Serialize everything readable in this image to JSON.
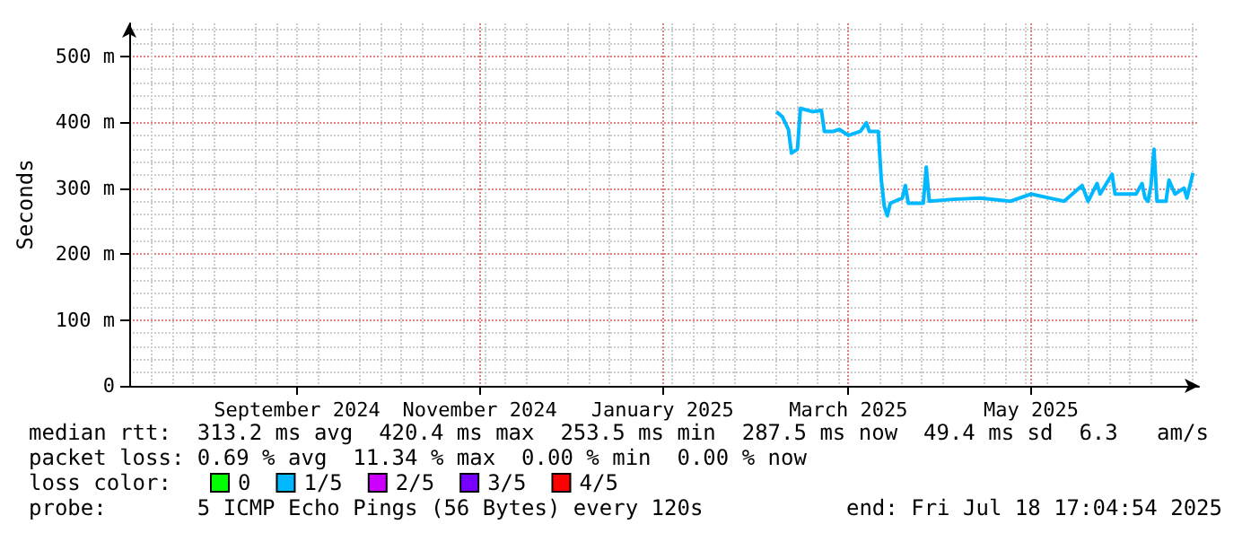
{
  "chart_data": {
    "type": "line",
    "ylabel": "Seconds",
    "xlim": [
      "2024-07-26",
      "2025-07-18"
    ],
    "xticks": [
      {
        "value": "2024-09-20",
        "label": "September 2024"
      },
      {
        "value": "2024-11-20",
        "label": "November 2024"
      },
      {
        "value": "2025-01-20",
        "label": "January 2025"
      },
      {
        "value": "2025-03-23",
        "label": "March 2025"
      },
      {
        "value": "2025-05-23",
        "label": "May 2025"
      }
    ],
    "ylim": [
      0,
      550
    ],
    "yticks": [
      0,
      {
        "value": 100,
        "label": "100 m"
      },
      {
        "value": 200,
        "label": "200 m"
      },
      {
        "value": 300,
        "label": "300 m"
      },
      {
        "value": 400,
        "label": "400 m"
      },
      {
        "value": 500,
        "label": "500 m"
      }
    ],
    "grid": true,
    "legend": "bottom",
    "marker": "none",
    "x": [
      "2025-02-27",
      "2025-03-01",
      "2025-03-03",
      "2025-03-04",
      "2025-03-06",
      "2025-03-07",
      "2025-03-11",
      "2025-03-14",
      "2025-03-15",
      "2025-03-18",
      "2025-03-20",
      "2025-03-23",
      "2025-03-27",
      "2025-03-29",
      "2025-03-30",
      "2025-04-02",
      "2025-04-03",
      "2025-04-04",
      "2025-04-05",
      "2025-04-06",
      "2025-04-10",
      "2025-04-11",
      "2025-04-12",
      "2025-04-17",
      "2025-04-18",
      "2025-04-19",
      "2025-04-27",
      "2025-05-06",
      "2025-05-16",
      "2025-05-23",
      "2025-05-29",
      "2025-06-03",
      "2025-06-09",
      "2025-06-11",
      "2025-06-14",
      "2025-06-15",
      "2025-06-19",
      "2025-06-20",
      "2025-06-27",
      "2025-06-29",
      "2025-06-30",
      "2025-07-01",
      "2025-07-02",
      "2025-07-03",
      "2025-07-04",
      "2025-07-07",
      "2025-07-08",
      "2025-07-10",
      "2025-07-13",
      "2025-07-14",
      "2025-07-16"
    ],
    "series": [
      {
        "name": "0",
        "color": "#00ff00",
        "values": [
          null,
          null,
          null,
          null,
          null,
          null,
          null,
          null,
          null,
          null,
          null,
          null,
          null,
          null,
          null,
          null,
          null,
          null,
          null,
          null,
          null,
          null,
          null,
          null,
          null,
          null,
          null,
          null,
          null,
          null,
          null,
          null,
          null,
          null,
          null,
          null,
          null,
          null,
          null,
          null,
          null,
          null,
          null,
          null,
          null,
          null,
          null,
          null,
          null,
          null,
          null
        ]
      },
      {
        "name": "1/5",
        "color": "#00b8ff",
        "values": [
          416,
          408,
          389,
          353,
          359,
          421,
          416,
          418,
          386,
          386,
          389,
          380,
          386,
          399,
          386,
          386,
          312,
          272,
          258,
          277,
          285,
          304,
          277,
          277,
          332,
          280,
          283,
          285,
          280,
          291,
          285,
          280,
          304,
          280,
          307,
          291,
          321,
          291,
          291,
          307,
          285,
          280,
          304,
          359,
          280,
          280,
          312,
          291,
          300,
          285,
          323
        ]
      },
      {
        "name": "2/5",
        "color": "#cc00ff",
        "values": [
          null,
          null,
          null,
          null,
          null,
          null,
          null,
          null,
          null,
          null,
          null,
          null,
          null,
          null,
          null,
          null,
          null,
          null,
          null,
          null,
          null,
          null,
          null,
          null,
          null,
          null,
          null,
          null,
          null,
          null,
          null,
          null,
          null,
          null,
          null,
          null,
          null,
          null,
          null,
          null,
          null,
          null,
          null,
          null,
          null,
          null,
          null,
          null,
          null,
          null,
          null
        ]
      },
      {
        "name": "3/5",
        "color": "#7700ff",
        "values": [
          null,
          null,
          null,
          null,
          null,
          null,
          null,
          null,
          null,
          null,
          null,
          null,
          null,
          null,
          null,
          null,
          null,
          null,
          null,
          null,
          null,
          null,
          null,
          null,
          null,
          null,
          null,
          null,
          null,
          null,
          null,
          null,
          null,
          null,
          null,
          null,
          null,
          null,
          null,
          null,
          null,
          null,
          null,
          null,
          null,
          null,
          null,
          null,
          null,
          null,
          null
        ]
      },
      {
        "name": "4/5",
        "color": "#ff0000",
        "values": [
          null,
          null,
          null,
          null,
          null,
          null,
          null,
          null,
          null,
          null,
          null,
          null,
          null,
          null,
          null,
          null,
          null,
          null,
          null,
          null,
          null,
          null,
          null,
          null,
          null,
          null,
          null,
          null,
          null,
          null,
          null,
          null,
          null,
          null,
          null,
          null,
          null,
          null,
          null,
          null,
          null,
          null,
          null,
          null,
          null,
          null,
          null,
          null,
          null,
          null,
          null
        ]
      }
    ],
    "annotations": [
      "median rtt:  313.2 ms avg  420.4 ms max  253.5 ms min  287.5 ms now  49.4 ms sd  6.3   am/s",
      "packet loss: 0.69 % avg  11.34 % max  0.00 % min  0.00 % now",
      "loss color:",
      "probe:       5 ICMP Echo Pings (56 Bytes) every 120s",
      "end: Fri Jul 18 17:04:54 2025"
    ]
  }
}
